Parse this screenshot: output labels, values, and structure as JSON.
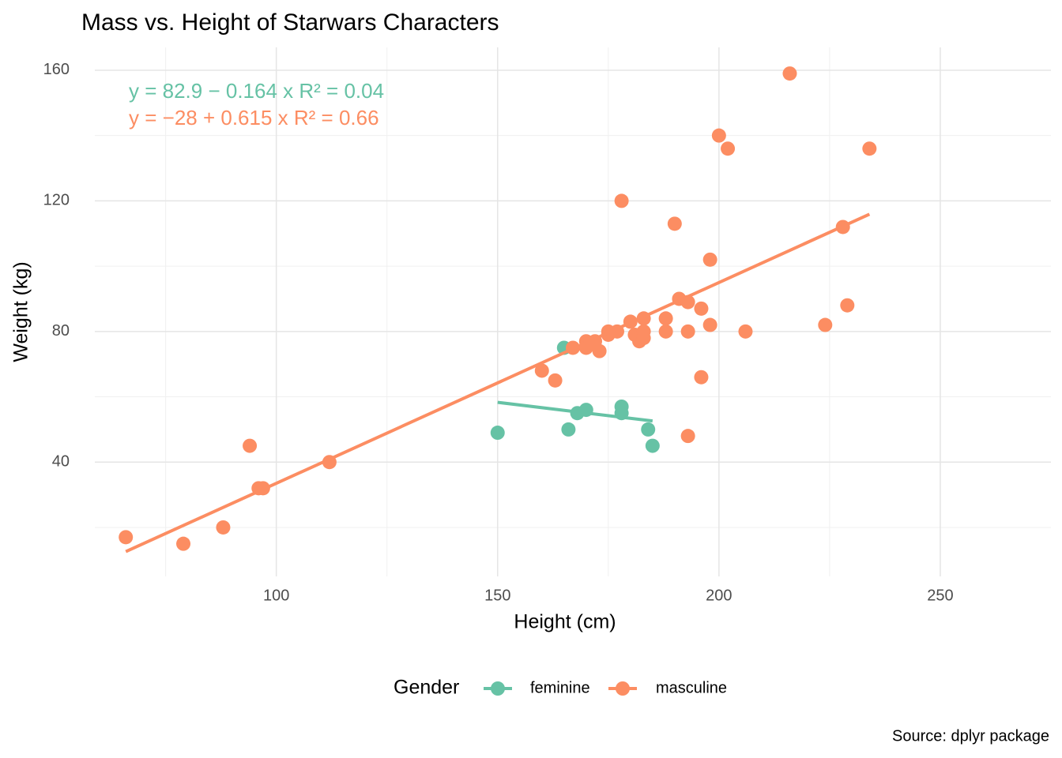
{
  "chart_data": {
    "type": "scatter",
    "title": "Mass vs. Height of Starwars Characters",
    "x_label": "Height (cm)",
    "y_label": "Weight (kg)",
    "caption": "Source: dplyr package",
    "legend_title": "Gender",
    "legend_position": "bottom",
    "xlim": [
      59,
      275
    ],
    "ylim": [
      5,
      167
    ],
    "xticks": [
      100,
      150,
      200,
      250
    ],
    "yticks": [
      40,
      80,
      120,
      160
    ],
    "x_minor_ticks": [
      75,
      125,
      175,
      225
    ],
    "y_minor_ticks": [
      20,
      60,
      100,
      140
    ],
    "grid": true,
    "series": [
      {
        "name": "feminine",
        "color": "#66c2a5",
        "x": [
          150,
          165,
          166,
          168,
          170,
          178,
          178,
          184,
          185
        ],
        "values": [
          49,
          75,
          50,
          55,
          56,
          57,
          55,
          50,
          45
        ],
        "fit": {
          "x": [
            150,
            185
          ],
          "values": [
            58.3,
            52.6
          ]
        },
        "equation": "y = 82.9 − 0.164 x   R² = 0.04"
      },
      {
        "name": "masculine",
        "color": "#fc8d62",
        "x": [
          66,
          79,
          88,
          94,
          96,
          97,
          112,
          160,
          163,
          167,
          170,
          170,
          172,
          173,
          175,
          175,
          178,
          177,
          180,
          181,
          182,
          183,
          183,
          183,
          188,
          188,
          190,
          191,
          193,
          193,
          193,
          196,
          196,
          198,
          198,
          200,
          202,
          206,
          216,
          224,
          228,
          229,
          234
        ],
        "values": [
          17,
          15,
          20,
          45,
          32,
          32,
          40,
          68,
          65,
          75,
          77,
          75,
          77,
          74,
          80,
          79,
          120,
          80,
          83,
          79,
          77,
          84,
          80,
          78,
          84,
          80,
          113,
          90,
          89,
          80,
          48,
          87,
          66,
          102,
          82,
          140,
          136,
          80,
          159,
          82,
          112,
          88,
          136
        ],
        "fit": {
          "x": [
            66,
            234
          ],
          "values": [
            12.6,
            115.9
          ]
        },
        "equation": "y = −28 + 0.615 x   R² = 0.66"
      }
    ]
  }
}
